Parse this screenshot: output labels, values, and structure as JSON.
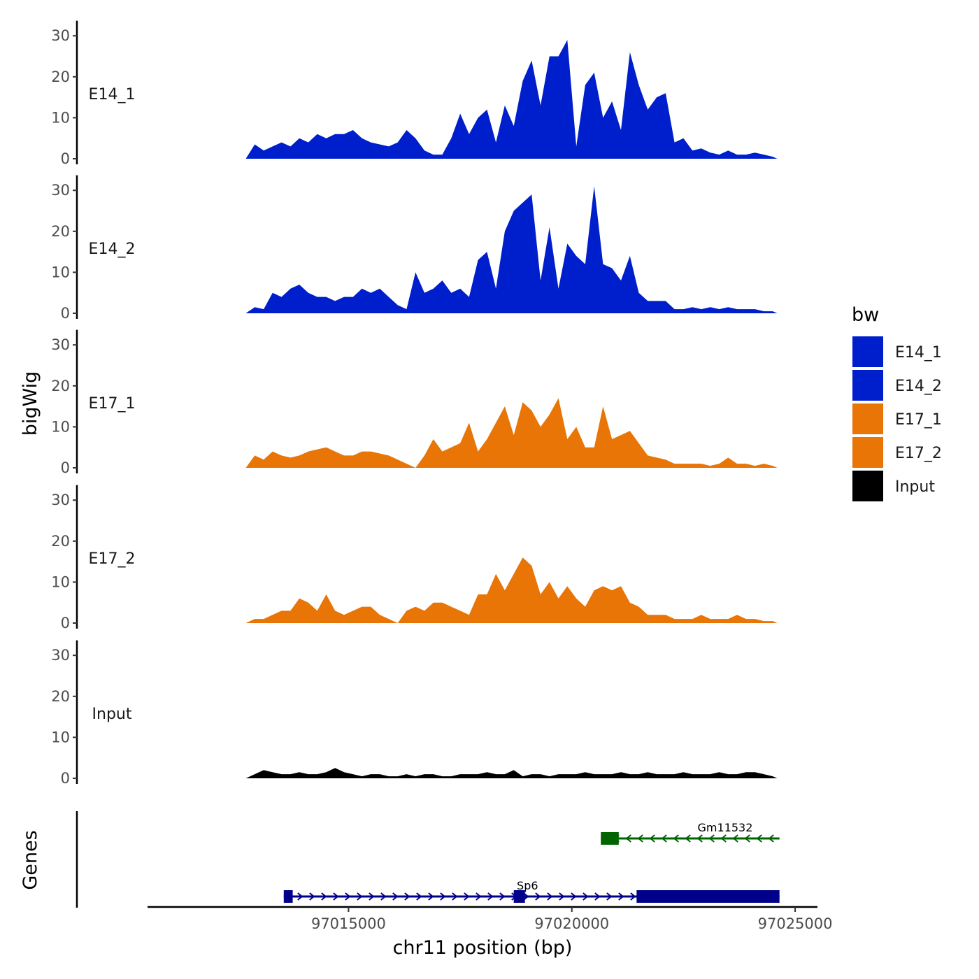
{
  "chart_data": {
    "type": "area",
    "title": "",
    "xlabel": "chr11 position (bp)",
    "ylabel": "bigWig",
    "genes_label": "Genes",
    "xlim": [
      97010500,
      97025500
    ],
    "ylim": [
      0,
      33
    ],
    "x_ticks": [
      97015000,
      97020000,
      97025000
    ],
    "x_tick_labels": [
      "97015000",
      "97020000",
      "97025000"
    ],
    "y_ticks": [
      0,
      10,
      20,
      30
    ],
    "y_tick_labels": [
      "0",
      "10",
      "20",
      "30"
    ],
    "legend": {
      "title": "bw",
      "position": "right",
      "entries": [
        {
          "label": "E14_1",
          "color": "#001fcc"
        },
        {
          "label": "E14_2",
          "color": "#001fcc"
        },
        {
          "label": "E17_1",
          "color": "#e87506"
        },
        {
          "label": "E17_2",
          "color": "#e87506"
        },
        {
          "label": "Input",
          "color": "#000000"
        }
      ]
    },
    "x": [
      97012700,
      97012900,
      97013100,
      97013300,
      97013500,
      97013700,
      97013900,
      97014100,
      97014300,
      97014500,
      97014700,
      97014900,
      97015100,
      97015300,
      97015500,
      97015700,
      97015900,
      97016100,
      97016300,
      97016500,
      97016700,
      97016900,
      97017100,
      97017300,
      97017500,
      97017700,
      97017900,
      97018100,
      97018300,
      97018500,
      97018700,
      97018900,
      97019100,
      97019300,
      97019500,
      97019700,
      97019900,
      97020100,
      97020300,
      97020500,
      97020700,
      97020900,
      97021100,
      97021300,
      97021500,
      97021700,
      97021900,
      97022100,
      97022300,
      97022500,
      97022700,
      97022900,
      97023100,
      97023300,
      97023500,
      97023700,
      97023900,
      97024100,
      97024300,
      97024500,
      97024600
    ],
    "series": [
      {
        "name": "E14_1",
        "color": "#001fcc",
        "values": [
          0,
          3.5,
          2,
          3,
          4,
          3,
          5,
          4,
          6,
          5,
          6,
          6,
          7,
          5,
          4,
          3.5,
          3,
          4,
          7,
          5,
          2,
          1,
          1,
          5,
          11,
          6,
          10,
          12,
          4,
          13,
          8,
          19,
          24,
          13,
          25,
          25,
          29,
          3,
          18,
          21,
          10,
          14,
          7,
          26,
          18,
          12,
          15,
          16,
          4,
          5,
          2,
          2.5,
          1.5,
          1,
          2,
          1,
          1,
          1.5,
          1,
          0.5,
          0
        ]
      },
      {
        "name": "E14_2",
        "color": "#001fcc",
        "values": [
          0,
          1.5,
          1,
          5,
          4,
          6,
          7,
          5,
          4,
          4,
          3,
          4,
          4,
          6,
          5,
          6,
          4,
          2,
          1,
          10,
          5,
          6,
          8,
          5,
          6,
          4,
          13,
          15,
          6,
          20,
          25,
          27,
          29,
          8,
          21,
          6,
          17,
          14,
          12,
          31,
          12,
          11,
          8,
          14,
          5,
          3,
          3,
          3,
          1,
          1,
          1.5,
          1,
          1.5,
          1,
          1.5,
          1,
          1,
          1,
          0.5,
          0.5,
          0
        ]
      },
      {
        "name": "E17_1",
        "color": "#e87506",
        "values": [
          0,
          3,
          2,
          4,
          3,
          2.5,
          3,
          4,
          4.5,
          5,
          4,
          3,
          3,
          4,
          4,
          3.5,
          3,
          2,
          1,
          0,
          3,
          7,
          4,
          5,
          6,
          11,
          4,
          7,
          11,
          15,
          8,
          16,
          14,
          10,
          13,
          17,
          7,
          10,
          5,
          5,
          15,
          7,
          8,
          9,
          6,
          3,
          2.5,
          2,
          1,
          1,
          1,
          1,
          0.5,
          1,
          2.5,
          1,
          1,
          0.5,
          1,
          0.5,
          0
        ]
      },
      {
        "name": "E17_2",
        "color": "#e87506",
        "values": [
          0,
          1,
          1,
          2,
          3,
          3,
          6,
          5,
          3,
          7,
          3,
          2,
          3,
          4,
          4,
          2,
          1,
          0,
          3,
          4,
          3,
          5,
          5,
          4,
          3,
          2,
          7,
          7,
          12,
          8,
          12,
          16,
          14,
          7,
          10,
          6,
          9,
          6,
          4,
          8,
          9,
          8,
          9,
          5,
          4,
          2,
          2,
          2,
          1,
          1,
          1,
          2,
          1,
          1,
          1,
          2,
          1,
          1,
          0.5,
          0.5,
          0
        ]
      },
      {
        "name": "Input",
        "color": "#000000",
        "values": [
          0,
          1,
          2,
          1.5,
          1,
          1,
          1.5,
          1,
          1,
          1.5,
          2.5,
          1.5,
          1,
          0.5,
          1,
          1,
          0.5,
          0.5,
          1,
          0.5,
          1,
          1,
          0.5,
          0.5,
          1,
          1,
          1,
          1.5,
          1,
          1,
          2,
          0.5,
          1,
          1,
          0.5,
          1,
          1,
          1,
          1.5,
          1,
          1,
          1,
          1.5,
          1,
          1,
          1.5,
          1,
          1,
          1,
          1.5,
          1,
          1,
          1,
          1.5,
          1,
          1,
          1.5,
          1.5,
          1,
          0.5,
          0
        ]
      }
    ],
    "genes": [
      {
        "name": "Gm11532",
        "color": "#006400",
        "strand": "-",
        "start": 97020650,
        "end": 97024650,
        "exons": [
          [
            97020650,
            97021050
          ]
        ]
      },
      {
        "name": "Sp6",
        "color": "#00008b",
        "strand": "+",
        "start": 97013550,
        "end": 97024650,
        "exons": [
          [
            97013550,
            97013750
          ],
          [
            97018700,
            97018950
          ],
          [
            97021450,
            97024650
          ]
        ]
      }
    ]
  }
}
